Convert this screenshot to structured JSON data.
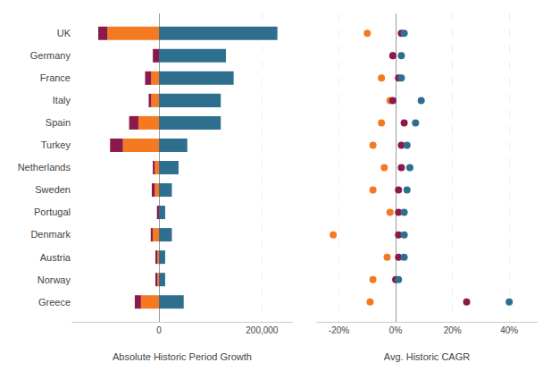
{
  "chart_data": [
    {
      "type": "bar",
      "orientation": "horizontal",
      "stacked": true,
      "grid": true,
      "categories": [
        "UK",
        "Germany",
        "France",
        "Italy",
        "Spain",
        "Turkey",
        "Netherlands",
        "Sweden",
        "Portugal",
        "Denmark",
        "Austria",
        "Norway",
        "Greece"
      ],
      "series": [
        {
          "color": "#F47920",
          "values": [
            -100000,
            0,
            -15000,
            -15000,
            -40000,
            -70000,
            -8000,
            -8000,
            0,
            -12000,
            -3000,
            -3000,
            -35000
          ]
        },
        {
          "color": "#8B1A4A",
          "values": [
            -18000,
            -12000,
            -12000,
            -5000,
            -18000,
            -25000,
            -4000,
            -6000,
            -4000,
            -4000,
            -4000,
            -4000,
            -12000
          ]
        },
        {
          "color": "#2E6F8E",
          "values": [
            230000,
            130000,
            145000,
            120000,
            120000,
            55000,
            38000,
            25000,
            12000,
            25000,
            12000,
            12000,
            48000
          ]
        }
      ],
      "x_label": "Absolute Historic Period Growth",
      "xlim": [
        -170000,
        260000
      ],
      "xticks": [
        0,
        {
          "value": 200000,
          "label": "200,000"
        }
      ]
    },
    {
      "type": "scatter",
      "orientation": "horizontal",
      "grid": true,
      "tick_labels": "x",
      "categories": [
        "UK",
        "Germany",
        "France",
        "Italy",
        "Spain",
        "Turkey",
        "Netherlands",
        "Sweden",
        "Portugal",
        "Denmark",
        "Austria",
        "Norway",
        "Greece"
      ],
      "series": [
        {
          "color": "#F47920",
          "values": [
            -10,
            -1,
            -5,
            -2,
            -5,
            -8,
            -4,
            -8,
            -2,
            -22,
            -3,
            -8,
            -9
          ]
        },
        {
          "color": "#8B1A4A",
          "values": [
            2,
            -1,
            1,
            -1,
            3,
            2,
            2,
            1,
            1,
            1,
            1,
            0,
            25
          ]
        },
        {
          "color": "#2E6F8E",
          "values": [
            3,
            2,
            2,
            9,
            7,
            4,
            5,
            4,
            3,
            3,
            3,
            1,
            40
          ]
        }
      ],
      "x_label": "Avg. Historic CAGR",
      "xlim": [
        -28,
        50
      ],
      "xticks": [
        {
          "value": -20,
          "label": "-20%"
        },
        {
          "value": 0,
          "label": "0%"
        },
        {
          "value": 20,
          "label": "20%"
        },
        {
          "value": 40,
          "label": "40%"
        }
      ]
    }
  ]
}
